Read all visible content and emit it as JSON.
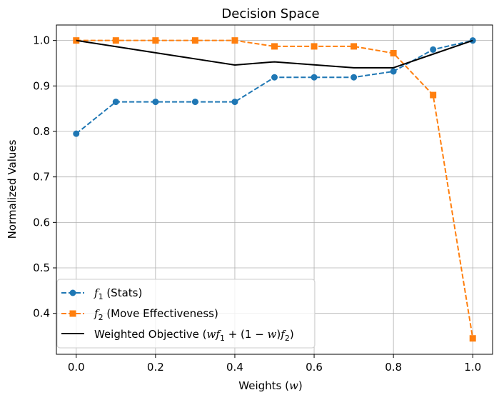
{
  "chart_data": {
    "type": "line",
    "title": "Decision Space",
    "xlabel": "Weights ($w$)",
    "ylabel": "Normalized Values",
    "xlim": [
      -0.05,
      1.05
    ],
    "ylim": [
      0.31,
      1.034
    ],
    "xticks": [
      "0.0",
      "0.2",
      "0.4",
      "0.6",
      "0.8",
      "1.0"
    ],
    "yticks": [
      "0.4",
      "0.5",
      "0.6",
      "0.7",
      "0.8",
      "0.9",
      "1.0"
    ],
    "grid": true,
    "legend_position": "lower-left",
    "x": [
      0.0,
      0.1,
      0.2,
      0.3,
      0.4,
      0.5,
      0.6,
      0.7,
      0.8,
      0.9,
      1.0
    ],
    "series": [
      {
        "name": "$f_1$ (Stats)",
        "style": "dashed",
        "marker": "circle",
        "color": "#1f77b4",
        "values": [
          0.795,
          0.865,
          0.865,
          0.865,
          0.865,
          0.919,
          0.919,
          0.919,
          0.932,
          0.98,
          1.0
        ]
      },
      {
        "name": "$f_2$ (Move Effectiveness)",
        "style": "dashed",
        "marker": "square",
        "color": "#ff7f0e",
        "values": [
          1.0,
          1.0,
          1.0,
          1.0,
          1.0,
          0.987,
          0.987,
          0.987,
          0.972,
          0.88,
          0.345
        ]
      },
      {
        "name": "Weighted Objective $(wf_1 + (1-w)f_2)$",
        "style": "solid",
        "marker": "none",
        "color": "#000000",
        "values": [
          1.0,
          0.9865,
          0.973,
          0.9595,
          0.946,
          0.953,
          0.9465,
          0.94,
          0.94,
          0.97,
          1.0
        ]
      }
    ]
  },
  "legend": {
    "f1_var": "f",
    "f1_sub": "1",
    "f1_rest": " (Stats)",
    "f2_var": "f",
    "f2_sub": "2",
    "f2_rest": " (Move Effectiveness)",
    "obj_text": "Weighted Objective ",
    "obj_open": "(",
    "obj_w1": "w",
    "obj_f1": "f",
    "obj_s1": "1",
    "obj_mid": " + (1 − ",
    "obj_w2": "w",
    "obj_close": ")",
    "obj_f2": "f",
    "obj_s2": "2",
    "obj_end": ")"
  },
  "xlabel_parts": {
    "text": "Weights (",
    "var": "w",
    "close": ")"
  }
}
